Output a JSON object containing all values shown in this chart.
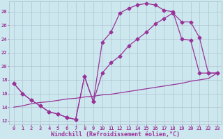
{
  "bg_color": "#cce8ee",
  "line_color": "#993399",
  "grid_color": "#aabbcc",
  "xlim": [
    -0.5,
    23.5
  ],
  "ylim": [
    11.5,
    29.5
  ],
  "xticks": [
    0,
    1,
    2,
    3,
    4,
    5,
    6,
    7,
    8,
    9,
    10,
    11,
    12,
    13,
    14,
    15,
    16,
    17,
    18,
    19,
    20,
    21,
    22,
    23
  ],
  "yticks": [
    12,
    14,
    16,
    18,
    20,
    22,
    24,
    26,
    28
  ],
  "line1_x": [
    0,
    1,
    2,
    3,
    4,
    5,
    6,
    7,
    8,
    9,
    10,
    11,
    12,
    13,
    14,
    15,
    16,
    17,
    18,
    19,
    20,
    21,
    22,
    23
  ],
  "line1_y": [
    17.5,
    16.0,
    15.0,
    14.2,
    13.3,
    13.0,
    12.5,
    12.2,
    18.5,
    14.8,
    23.5,
    25.0,
    27.8,
    28.5,
    29.0,
    29.2,
    29.0,
    28.2,
    28.0,
    24.0,
    23.8,
    19.0,
    19.0,
    19.0
  ],
  "line2_x": [
    0,
    1,
    2,
    3,
    4,
    5,
    6,
    7,
    8,
    9,
    10,
    11,
    12,
    13,
    14,
    15,
    16,
    17,
    18,
    19,
    20,
    21,
    22,
    23
  ],
  "line2_y": [
    17.5,
    16.0,
    15.0,
    14.2,
    13.3,
    13.0,
    12.5,
    12.2,
    18.5,
    14.8,
    19.0,
    20.5,
    21.5,
    23.0,
    24.0,
    25.0,
    26.2,
    27.0,
    27.8,
    26.5,
    26.5,
    24.2,
    19.0,
    19.0
  ],
  "line3_x": [
    0,
    1,
    2,
    3,
    4,
    5,
    6,
    7,
    8,
    9,
    10,
    11,
    12,
    13,
    14,
    15,
    16,
    17,
    18,
    19,
    20,
    21,
    22,
    23
  ],
  "line3_y": [
    14.0,
    14.2,
    14.5,
    14.7,
    14.8,
    15.0,
    15.2,
    15.3,
    15.5,
    15.6,
    15.8,
    15.9,
    16.1,
    16.3,
    16.5,
    16.7,
    16.9,
    17.1,
    17.3,
    17.5,
    17.8,
    18.0,
    18.2,
    19.0
  ],
  "xlabel": "Windchill (Refroidissement éolien,°C)",
  "markersize": 2.5,
  "linewidth": 0.9,
  "tick_fontsize": 5.0,
  "xlabel_fontsize": 6.0
}
